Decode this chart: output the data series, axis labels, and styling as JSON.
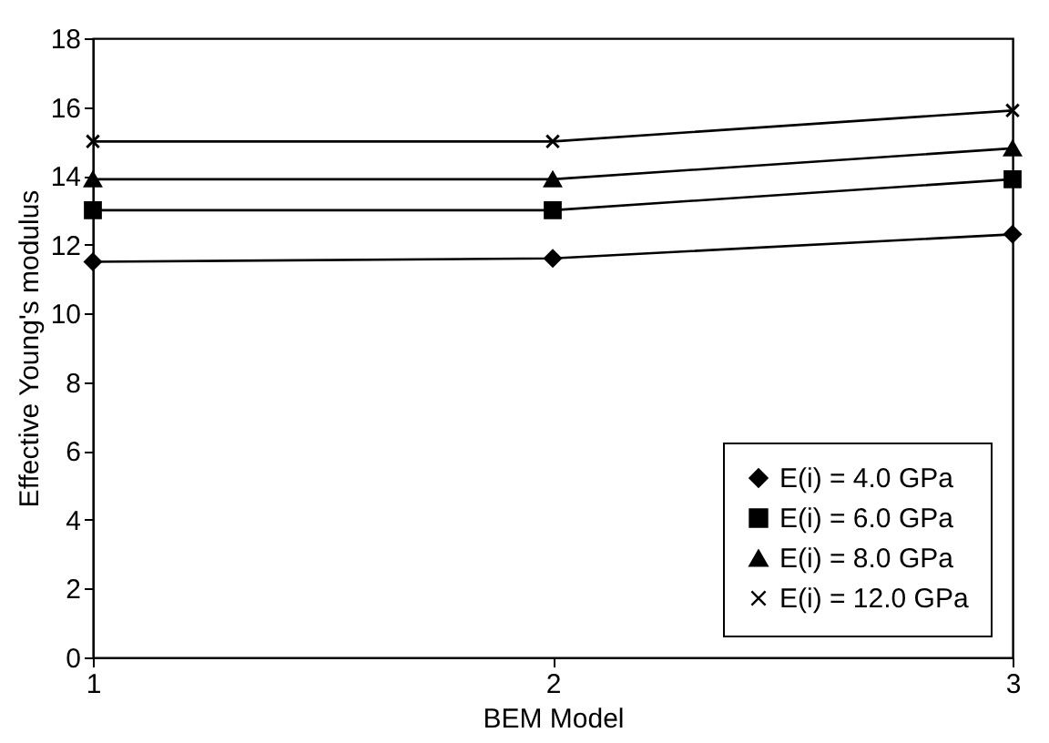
{
  "chart_data": {
    "type": "line",
    "xlabel": "BEM Model",
    "ylabel": "Effective Young's modulus",
    "x": [
      1,
      2,
      3
    ],
    "xlim": [
      1,
      3
    ],
    "xticks": [
      1,
      2,
      3
    ],
    "ylim": [
      0,
      18
    ],
    "yticks": [
      0,
      2,
      4,
      6,
      8,
      10,
      12,
      14,
      16,
      18
    ],
    "grid": false,
    "legend": "bottom right",
    "line_style": "solid",
    "series": [
      {
        "name": "E(i) = 4.0 GPa",
        "color": "#000000",
        "marker": "diamond",
        "values": [
          11.5,
          11.6,
          12.3
        ]
      },
      {
        "name": "E(i) = 6.0 GPa",
        "color": "#000000",
        "marker": "square",
        "values": [
          13.0,
          13.0,
          13.9
        ]
      },
      {
        "name": "E(i) = 8.0 GPa",
        "color": "#000000",
        "marker": "triangle",
        "values": [
          13.9,
          13.9,
          14.8
        ]
      },
      {
        "name": "E(i) = 12.0 GPa",
        "color": "#000000",
        "marker": "cross",
        "values": [
          15.0,
          15.0,
          15.9
        ]
      }
    ]
  }
}
